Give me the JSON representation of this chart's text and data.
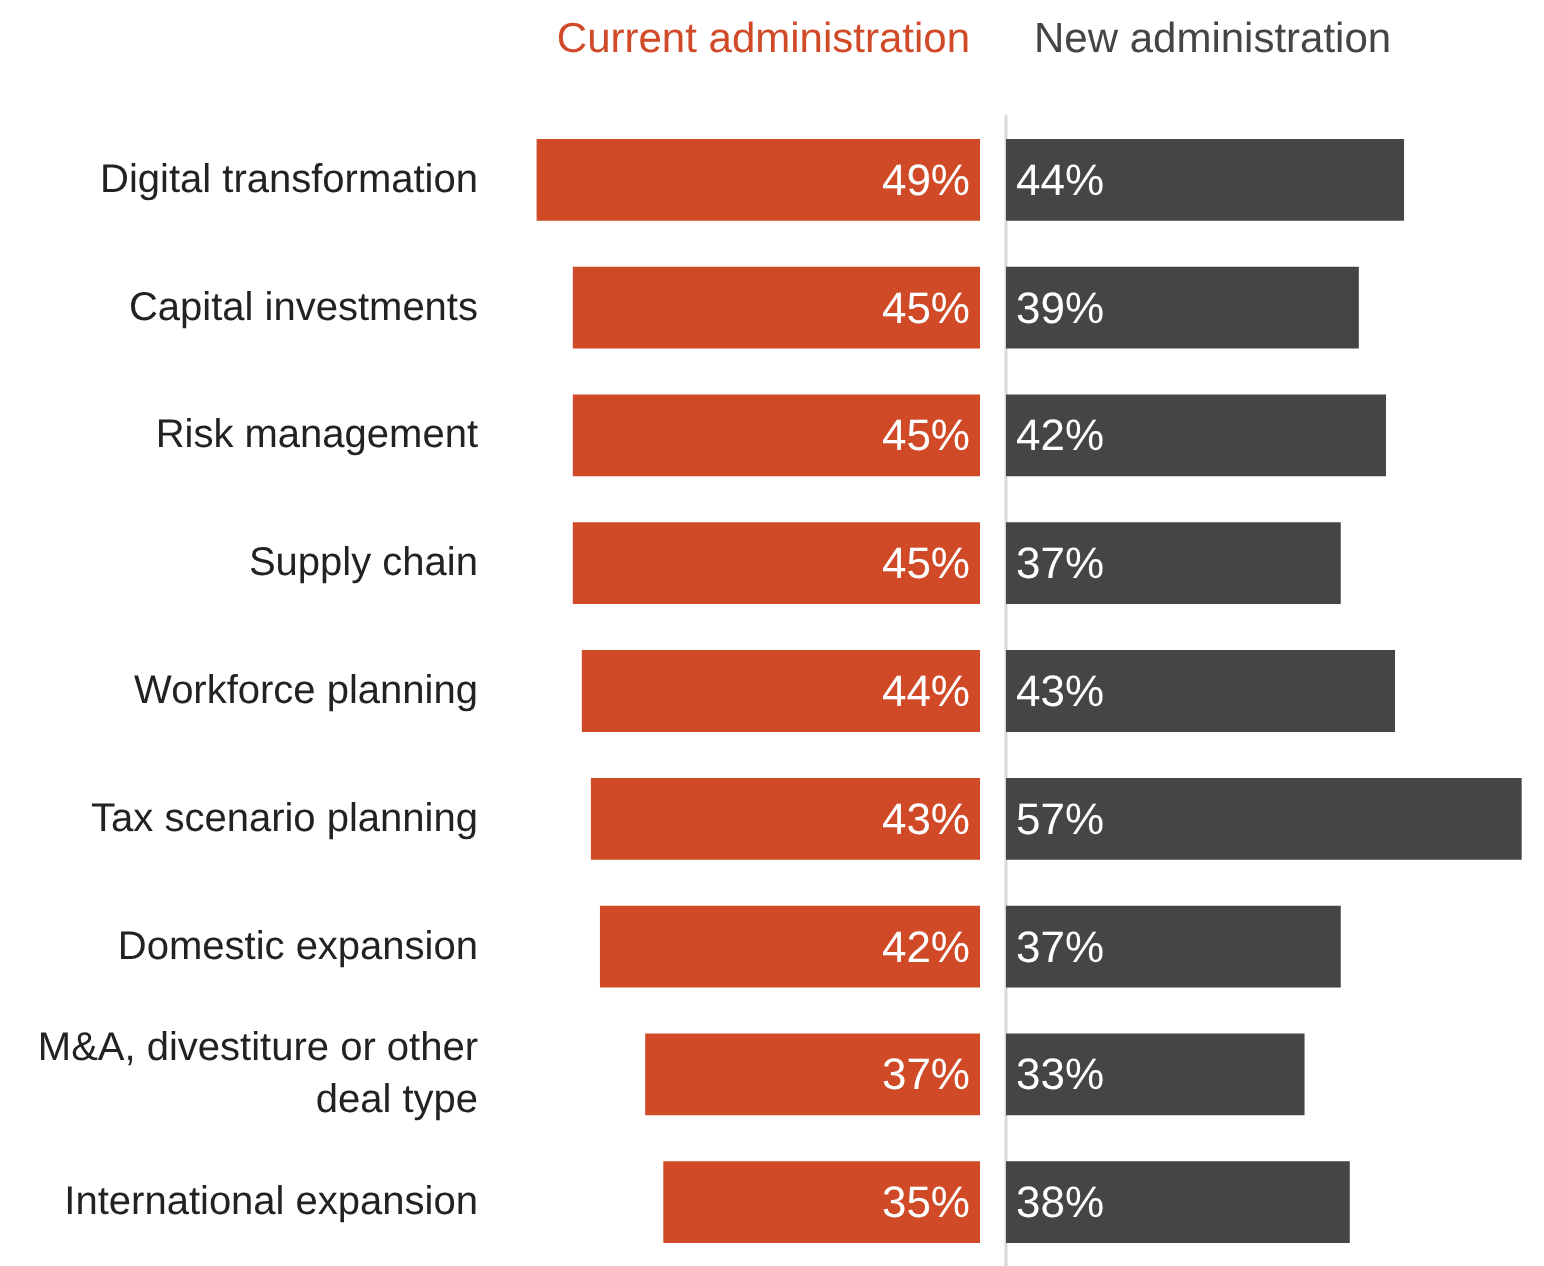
{
  "chart_data": [
    {
      "type": "bar",
      "orientation": "horizontal",
      "title": "Current administration",
      "categories": [
        "Digital transformation",
        "Capital investments",
        "Risk management",
        "Supply chain",
        "Workforce planning",
        "Tax scenario planning",
        "Domestic expansion",
        "M&A, divestiture or other deal type",
        "International expansion"
      ],
      "values": [
        49,
        45,
        45,
        45,
        44,
        43,
        42,
        37,
        35
      ],
      "value_labels": [
        "49%",
        "45%",
        "45%",
        "45%",
        "44%",
        "43%",
        "42%",
        "37%",
        "35%"
      ],
      "color": "#d04a27",
      "tick_labels": "y"
    },
    {
      "type": "bar",
      "orientation": "horizontal",
      "title": "New administration",
      "categories": [
        "Digital transformation",
        "Capital investments",
        "Risk management",
        "Supply chain",
        "Workforce planning",
        "Tax scenario planning",
        "Domestic expansion",
        "M&A, divestiture or other deal type",
        "International expansion"
      ],
      "values": [
        44,
        39,
        42,
        37,
        43,
        57,
        37,
        33,
        38
      ],
      "value_labels": [
        "44%",
        "39%",
        "42%",
        "37%",
        "43%",
        "57%",
        "37%",
        "33%",
        "38%"
      ],
      "color": "#454545",
      "tick_labels": false
    }
  ]
}
